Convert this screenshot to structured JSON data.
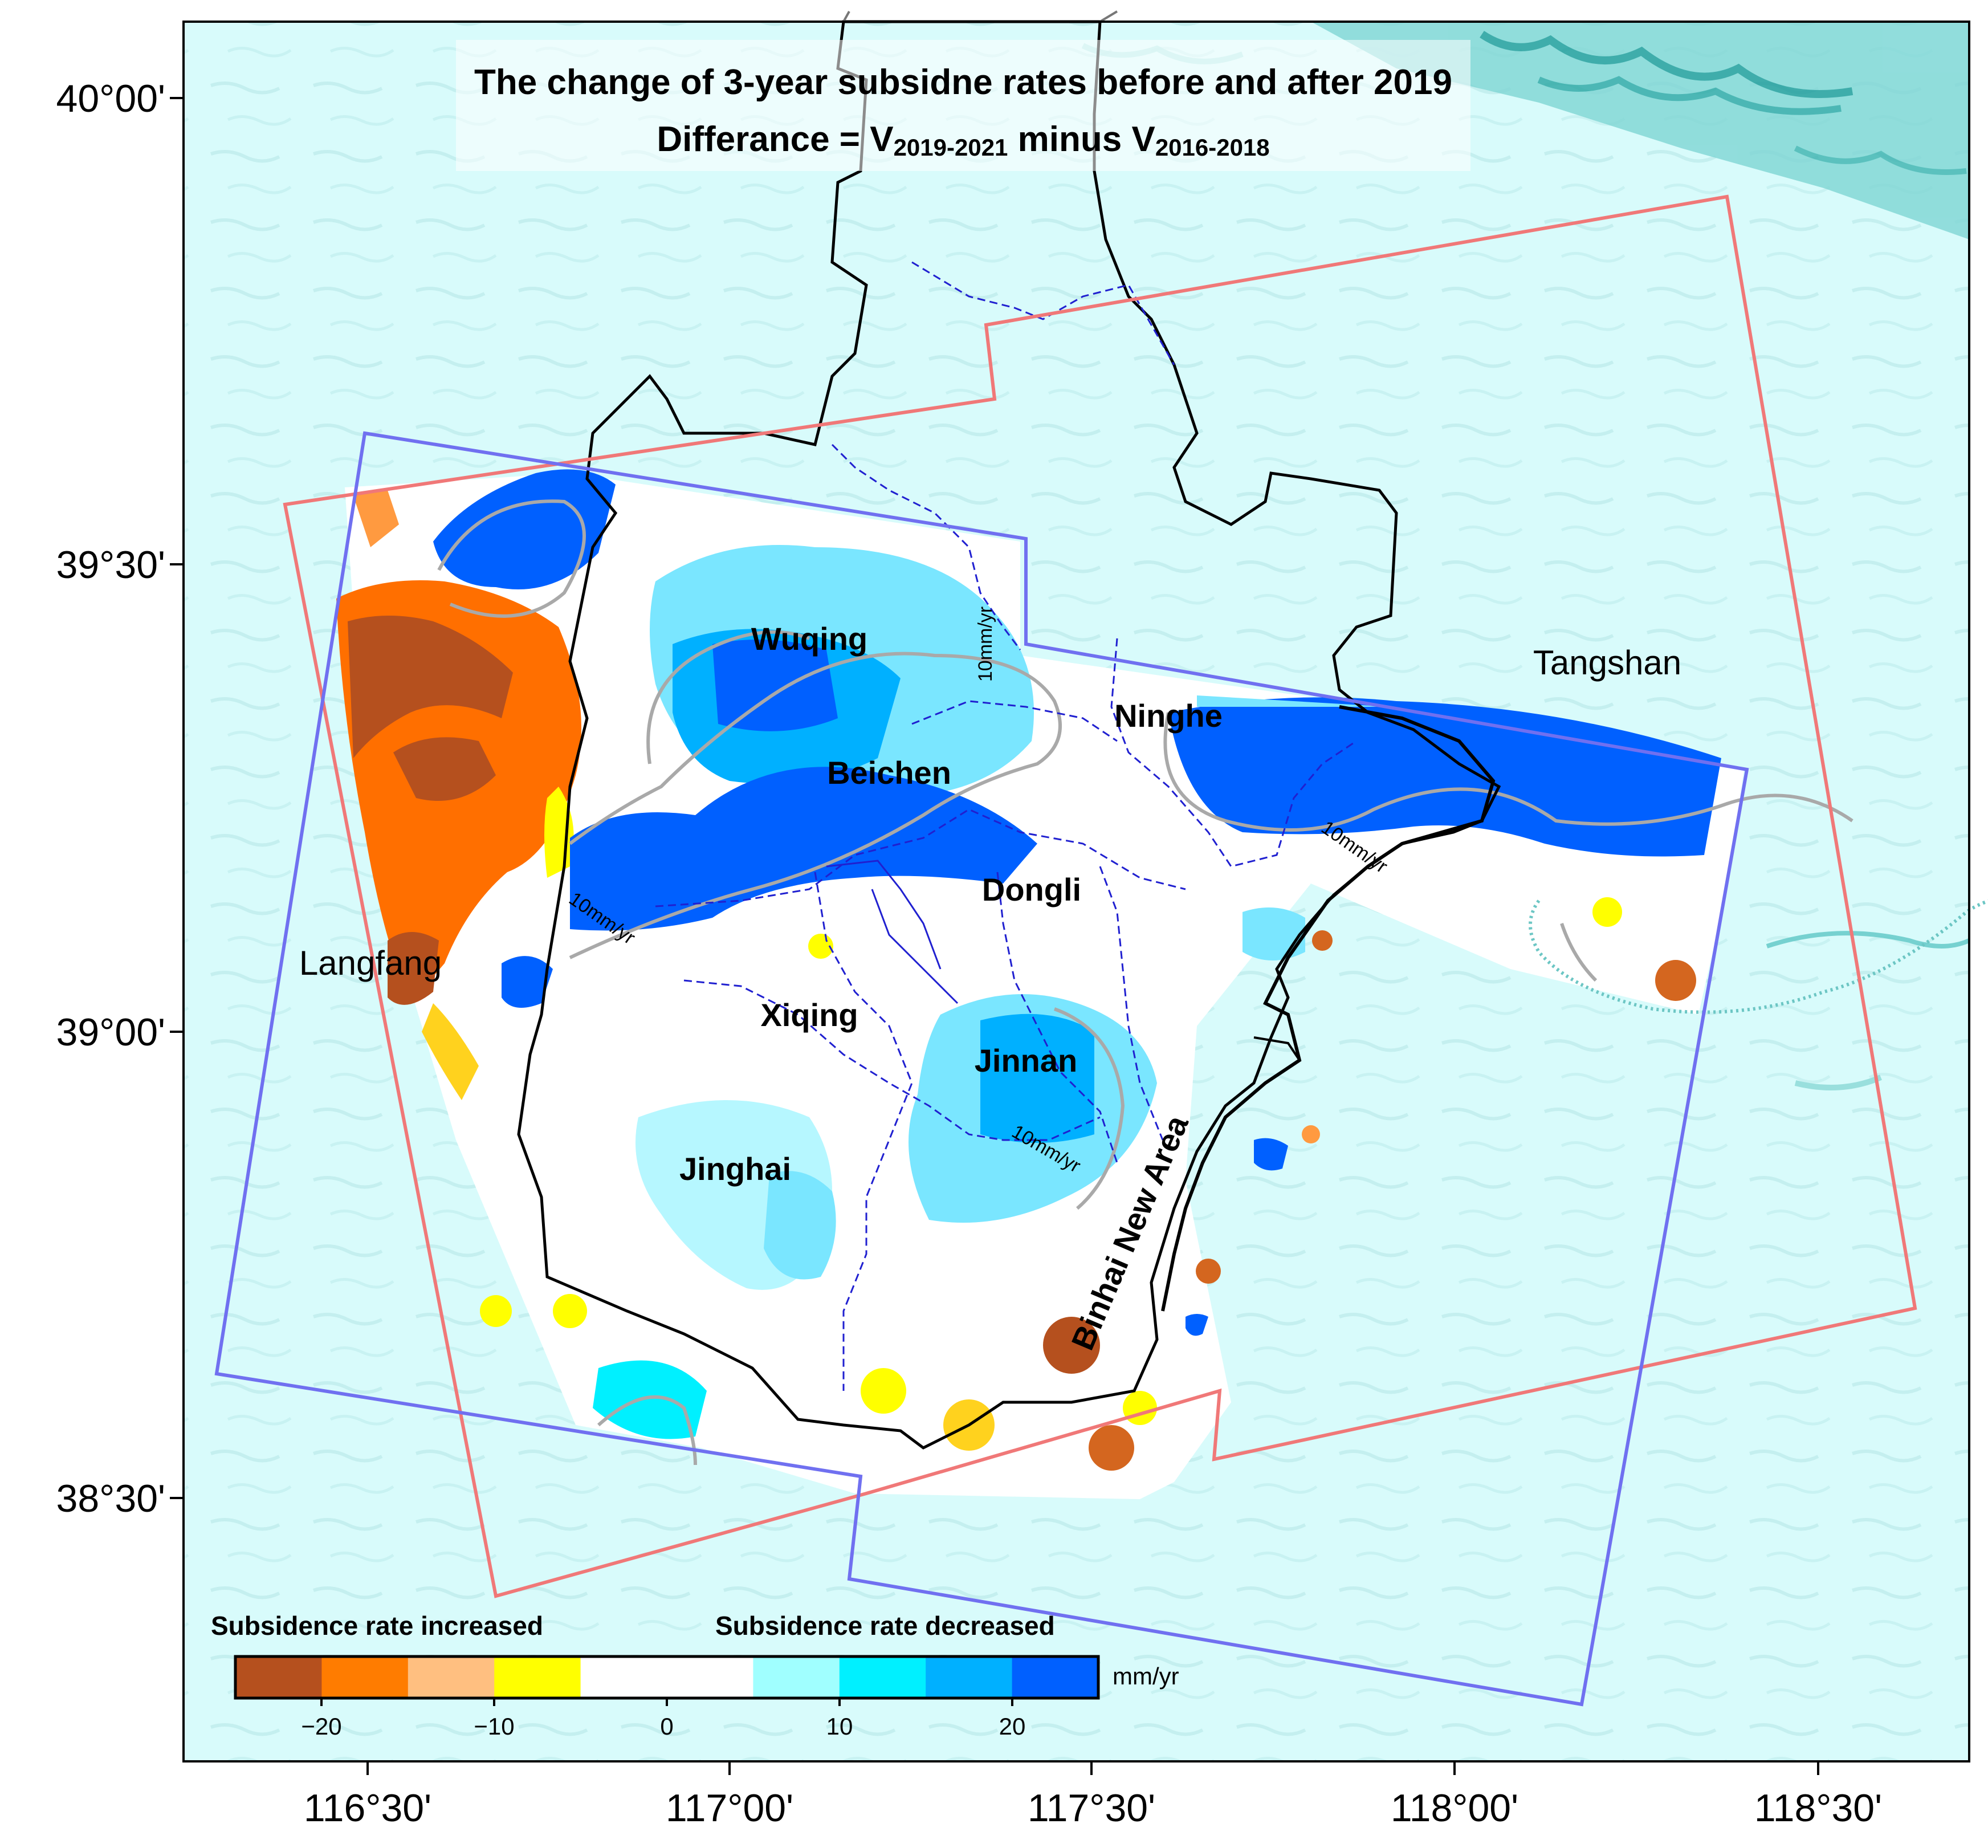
{
  "title": {
    "line1": "The change of 3-year subsidne rates before and after 2019",
    "line2_prefix": "Differance =  V",
    "line2_sub1": "2019-2021",
    "line2_mid": " minus  V",
    "line2_sub2": "2016-2018"
  },
  "axes": {
    "x_ticks": [
      "116°30'",
      "117°00'",
      "117°30'",
      "118°00'",
      "118°30'"
    ],
    "y_ticks": [
      "40°00'",
      "39°30'",
      "39°00'",
      "38°30'"
    ]
  },
  "districts": [
    "Wuqing",
    "Beichen",
    "Ninghe",
    "Dongli",
    "Xiqing",
    "Jinnan",
    "Jinghai",
    "Binhai New Area"
  ],
  "cities": [
    "Tangshan",
    "Langfang"
  ],
  "contour_label": "10mm/yr",
  "frame_colors": {
    "track_a": "#f07878",
    "track_b": "#7070f0",
    "boundary": "#000000"
  },
  "legend": {
    "increased_label": "Subsidence rate increased",
    "decreased_label": "Subsidence rate decreased",
    "unit": "mm/yr",
    "tick_labels": [
      "−20",
      "−10",
      "0",
      "10",
      "20"
    ],
    "colors": [
      "#b5501e",
      "#ff7c00",
      "#ffbf80",
      "#ffff00",
      "#ffffff",
      "#ffffff",
      "#a0ffff",
      "#00f0ff",
      "#00b0ff",
      "#0060ff"
    ]
  }
}
